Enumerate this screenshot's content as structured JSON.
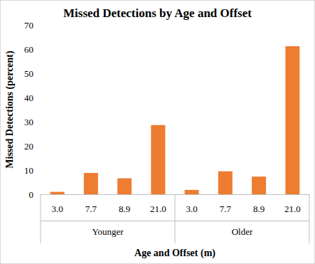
{
  "chart_data": {
    "type": "bar",
    "title": "Missed Detections by Age and Offset",
    "x_label": "Age and Offset (m)",
    "y_label": "Missed Detections (percent)",
    "groups": [
      "Younger",
      "Older"
    ],
    "categories": [
      "3.0",
      "7.7",
      "8.9",
      "21.0",
      "3.0",
      "7.7",
      "8.9",
      "21.0"
    ],
    "values": [
      1.0,
      8.8,
      6.6,
      28.6,
      1.8,
      9.5,
      7.3,
      61.2
    ],
    "color": "#ed7d31",
    "ylim": [
      0,
      70
    ],
    "yticks": [
      0,
      10,
      20,
      30,
      40,
      50,
      60,
      70
    ],
    "grid": false
  }
}
